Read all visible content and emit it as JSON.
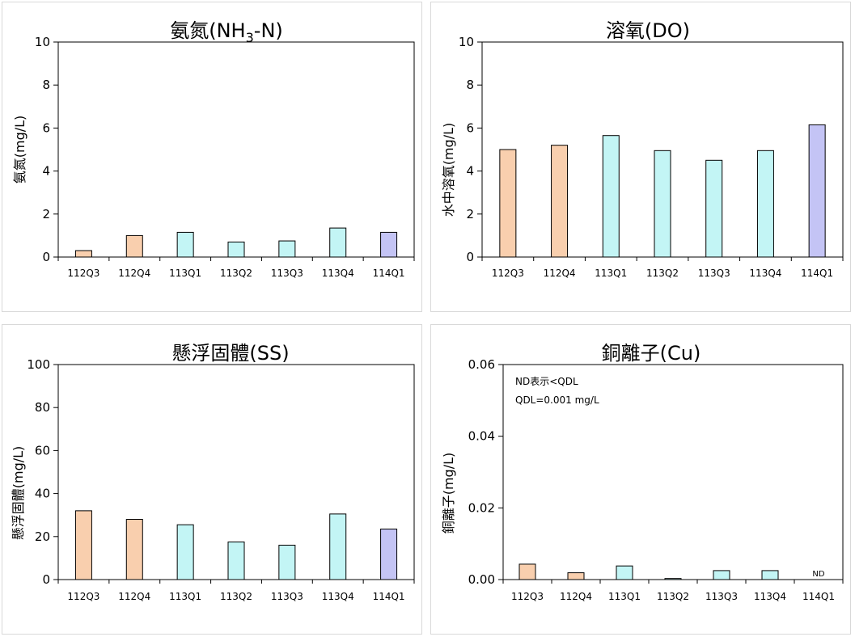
{
  "colors": {
    "q_2023": "#f9cfae",
    "q_2024": "#c3f5f5",
    "q_2025": "#c4c4f5",
    "edge": "#000000"
  },
  "chart_data": [
    {
      "type": "bar",
      "title": "氨氮(NH3-N)",
      "title_main": "氨氮(NH",
      "title_sub": "3",
      "title_tail": "-N)",
      "ylabel": "氨氮(mg/L)",
      "categories": [
        "112Q3",
        "112Q4",
        "113Q1",
        "113Q2",
        "113Q3",
        "113Q4",
        "114Q1"
      ],
      "values": [
        0.3,
        1.0,
        1.15,
        0.7,
        0.75,
        1.35,
        1.15
      ],
      "value_labels": [
        "",
        "",
        "",
        "",
        "",
        "",
        ""
      ],
      "bar_colors": [
        "q_2023",
        "q_2023",
        "q_2024",
        "q_2024",
        "q_2024",
        "q_2024",
        "q_2025"
      ],
      "ylim": [
        0,
        10
      ],
      "yticks": [
        "0",
        "2",
        "4",
        "6",
        "8",
        "10"
      ],
      "notes": []
    },
    {
      "type": "bar",
      "title": "溶氧(DO)",
      "title_main": "溶氧(DO)",
      "title_sub": "",
      "title_tail": "",
      "ylabel": "水中溶氧(mg/L)",
      "categories": [
        "112Q3",
        "112Q4",
        "113Q1",
        "113Q2",
        "113Q3",
        "113Q4",
        "114Q1"
      ],
      "values": [
        5.0,
        5.2,
        5.65,
        4.95,
        4.5,
        4.95,
        6.15
      ],
      "value_labels": [
        "",
        "",
        "",
        "",
        "",
        "",
        ""
      ],
      "bar_colors": [
        "q_2023",
        "q_2023",
        "q_2024",
        "q_2024",
        "q_2024",
        "q_2024",
        "q_2025"
      ],
      "ylim": [
        0,
        10
      ],
      "yticks": [
        "0",
        "2",
        "4",
        "6",
        "8",
        "10"
      ],
      "notes": []
    },
    {
      "type": "bar",
      "title": "懸浮固體(SS)",
      "title_main": "懸浮固體(SS)",
      "title_sub": "",
      "title_tail": "",
      "ylabel": "懸浮固體(mg/L)",
      "categories": [
        "112Q3",
        "112Q4",
        "113Q1",
        "113Q2",
        "113Q3",
        "113Q4",
        "114Q1"
      ],
      "values": [
        32,
        28,
        25.5,
        17.5,
        16,
        30.5,
        23.5
      ],
      "value_labels": [
        "",
        "",
        "",
        "",
        "",
        "",
        ""
      ],
      "bar_colors": [
        "q_2023",
        "q_2023",
        "q_2024",
        "q_2024",
        "q_2024",
        "q_2024",
        "q_2025"
      ],
      "ylim": [
        0,
        100
      ],
      "yticks": [
        "0",
        "20",
        "40",
        "60",
        "80",
        "100"
      ],
      "notes": []
    },
    {
      "type": "bar",
      "title": "銅離子(Cu)",
      "title_main": "銅離子(Cu)",
      "title_sub": "",
      "title_tail": "",
      "ylabel": "銅離子(mg/L)",
      "categories": [
        "112Q3",
        "112Q4",
        "113Q1",
        "113Q2",
        "113Q3",
        "113Q4",
        "114Q1"
      ],
      "values": [
        0.0043,
        0.0019,
        0.0038,
        0.0003,
        0.0025,
        0.0025,
        0
      ],
      "value_labels": [
        "",
        "",
        "",
        "",
        "",
        "",
        "ND"
      ],
      "bar_colors": [
        "q_2023",
        "q_2023",
        "q_2024",
        "q_2024",
        "q_2024",
        "q_2024",
        "q_2025"
      ],
      "ylim": [
        0,
        0.06
      ],
      "yticks": [
        "0.00",
        "0.02",
        "0.04",
        "0.06"
      ],
      "notes": [
        "ND表示<QDL",
        "QDL=0.001 mg/L"
      ]
    }
  ]
}
